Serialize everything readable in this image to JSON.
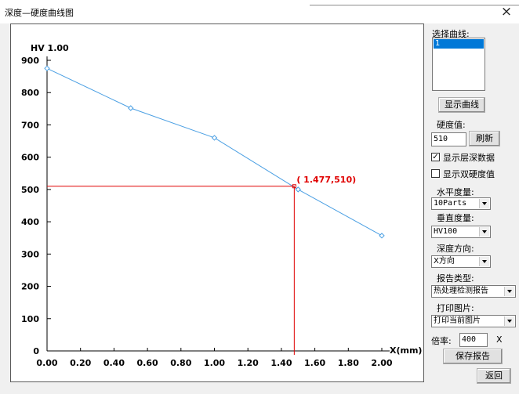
{
  "window": {
    "title": "深度—硬度曲线图",
    "close_symbol": "×"
  },
  "chart_data": {
    "type": "line",
    "y_unit_label": "HV 1.00",
    "x_unit_label": "X(mm)",
    "xlim": [
      0,
      2.0
    ],
    "ylim": [
      0,
      900
    ],
    "x_ticks": [
      "0.00",
      "0.20",
      "0.40",
      "0.60",
      "0.80",
      "1.00",
      "1.20",
      "1.40",
      "1.60",
      "1.80",
      "2.00"
    ],
    "y_ticks": [
      "0",
      "100",
      "200",
      "300",
      "400",
      "500",
      "600",
      "700",
      "800",
      "900"
    ],
    "series": [
      {
        "x": [
          0.0,
          0.5,
          1.0,
          1.5,
          2.0
        ],
        "y": [
          875,
          752,
          660,
          500,
          357
        ]
      }
    ],
    "crosshair": {
      "x": 1.477,
      "y": 510,
      "label": "( 1.477,510)"
    },
    "colors": {
      "line": "#4a9fe3",
      "marker": "#4a9fe3",
      "crosshair": "#e00000",
      "crosshair_label": "#e00000",
      "axis": "#000000"
    }
  },
  "panel": {
    "select_curve_label": "选择曲线:",
    "curve_list": [
      "1"
    ],
    "show_curve_button": "显示曲线",
    "hardness_label": "硬度值:",
    "hardness_value": "510",
    "refresh_button": "刷新",
    "show_layer_depth": {
      "checked": true,
      "label": "显示层深数据",
      "mark": "✓"
    },
    "show_double_hardness": {
      "checked": false,
      "label": "显示双硬度值",
      "mark": ""
    },
    "horizontal_scale_label": "水平度量:",
    "horizontal_scale_value": "10Parts",
    "vertical_scale_label": "垂直度量:",
    "vertical_scale_value": "HV100",
    "depth_direction_label": "深度方向:",
    "depth_direction_value": "X方向",
    "report_type_label": "报告类型:",
    "report_type_value": "热处理检测报告",
    "print_image_label": "打印图片:",
    "print_image_value": "打印当前图片",
    "magnification_label": "倍率:",
    "magnification_value": "400",
    "magnification_unit": "X",
    "save_report_button": "保存报告",
    "back_button": "返回"
  }
}
